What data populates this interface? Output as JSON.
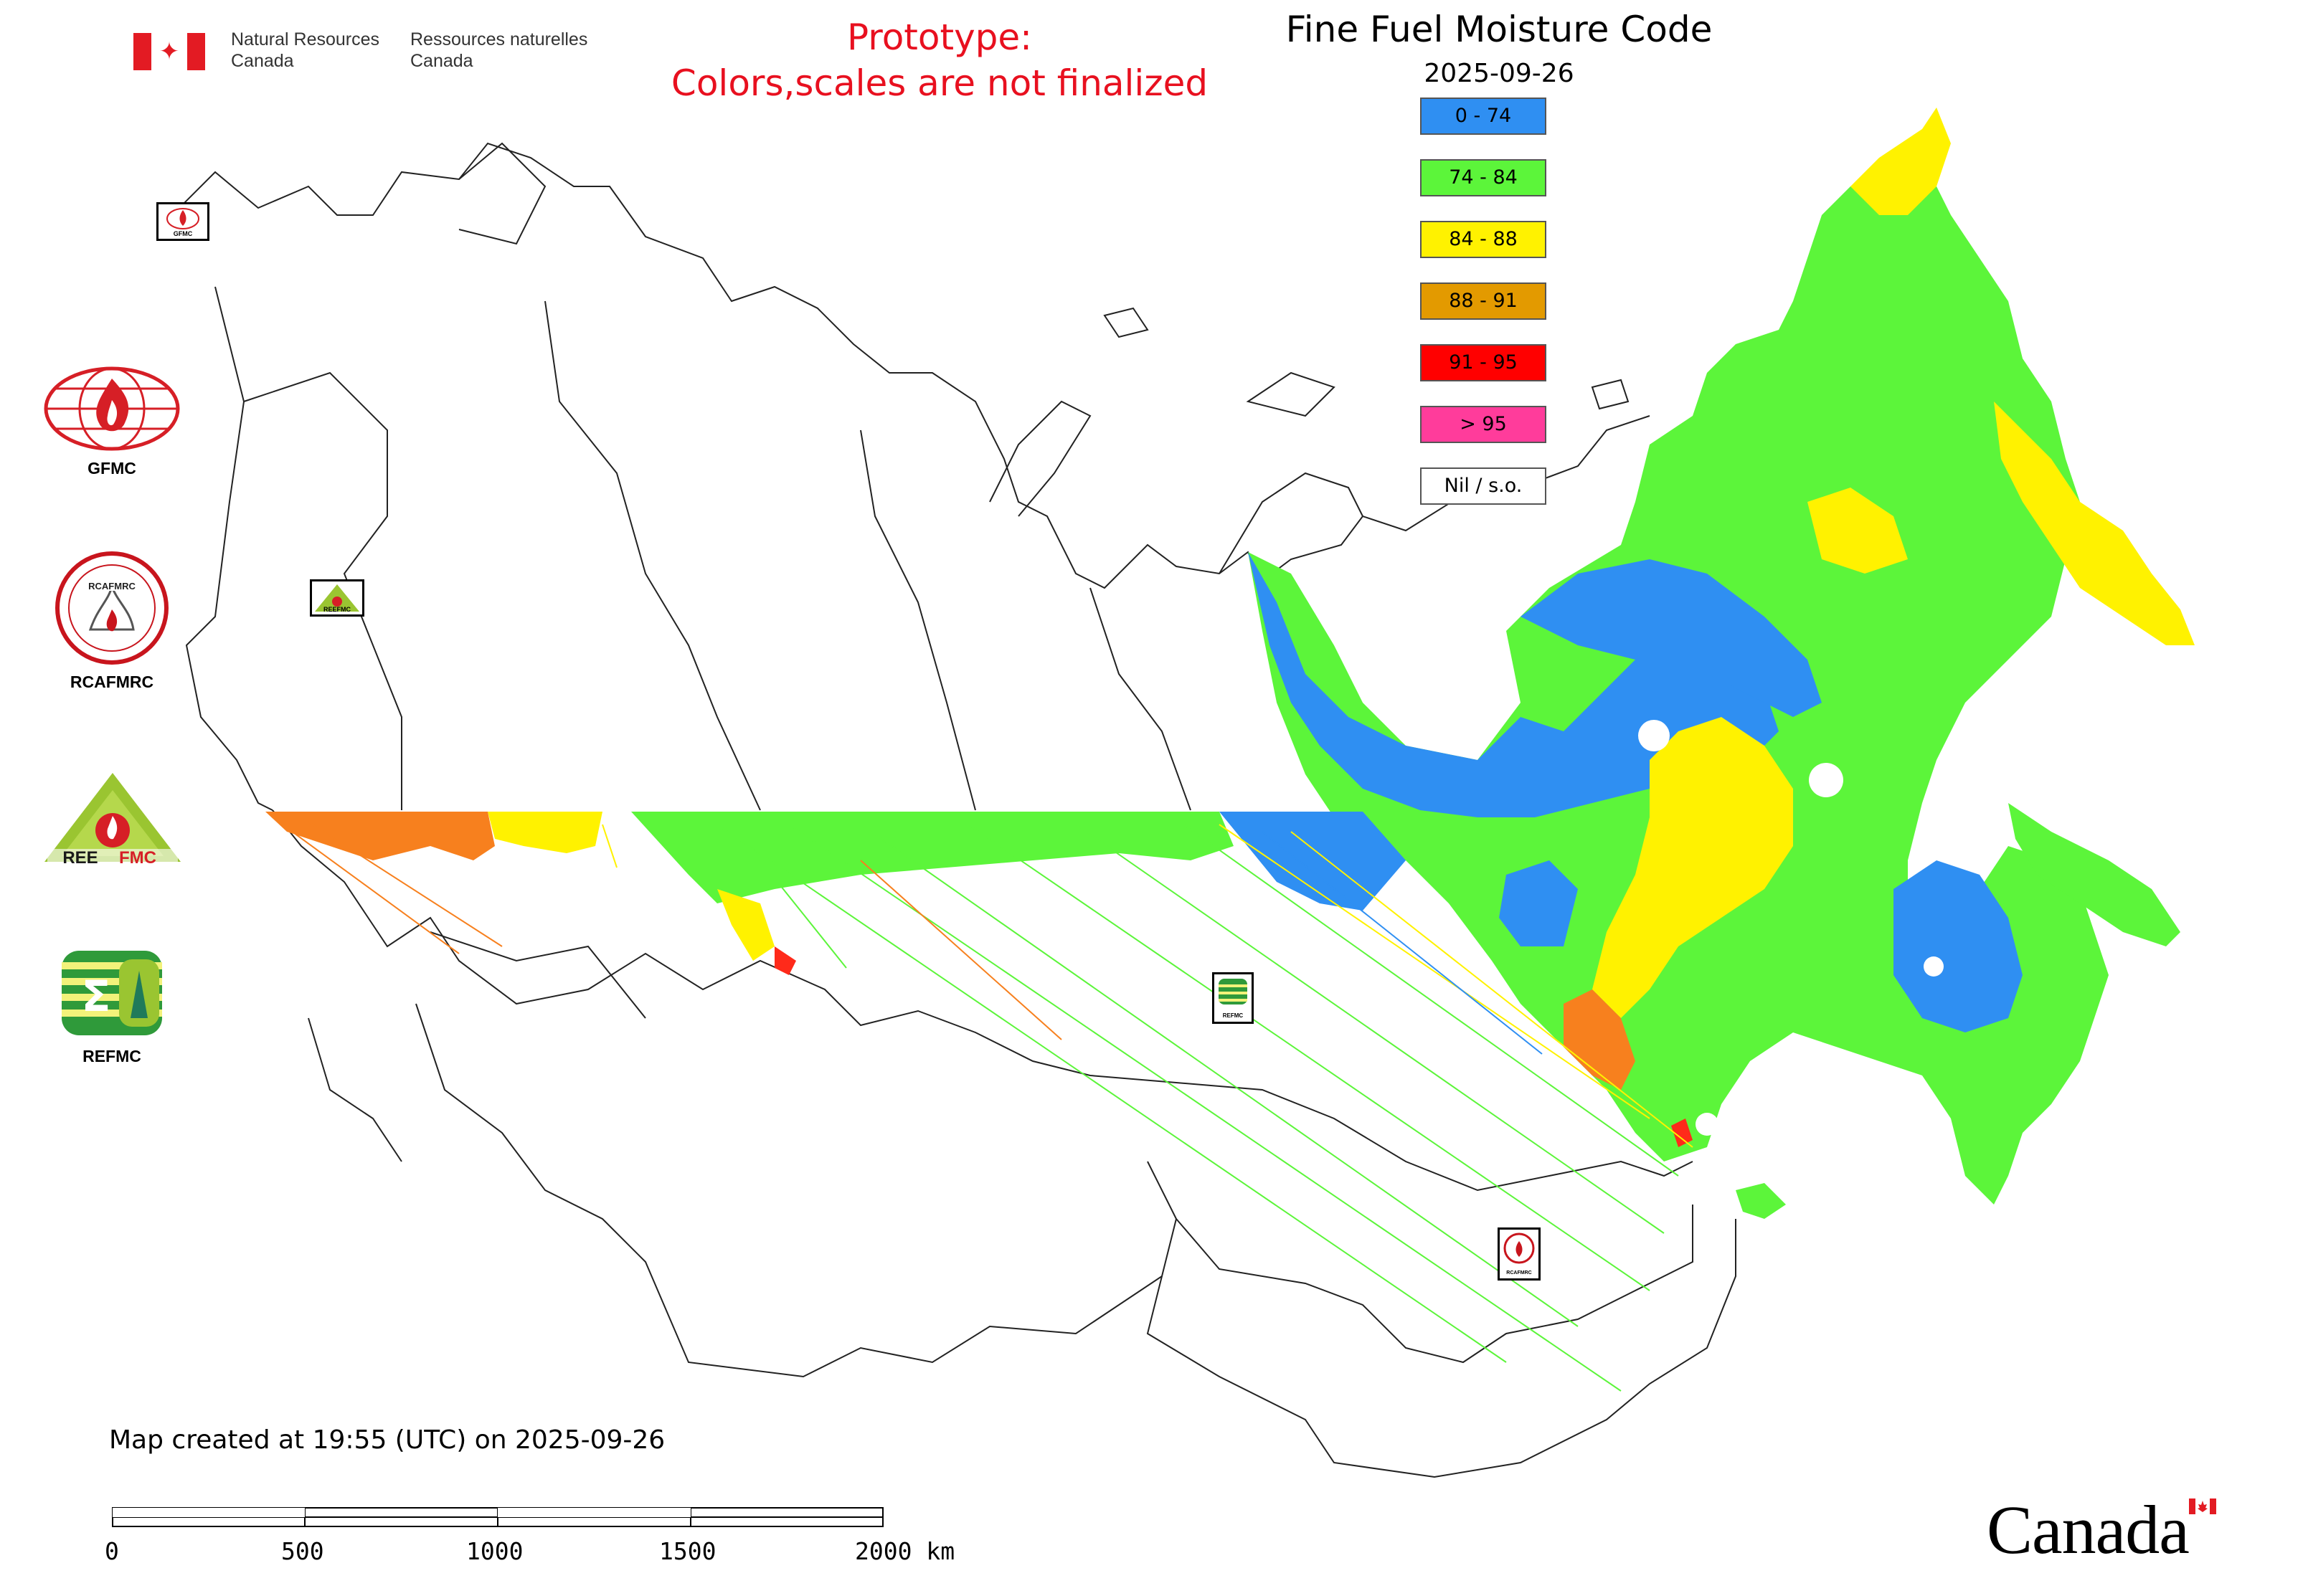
{
  "header": {
    "dept_en": [
      "Natural Resources",
      "Canada"
    ],
    "dept_fr": [
      "Ressources naturelles",
      "Canada"
    ],
    "prototype_line1": "Prototype:",
    "prototype_line2": "Colors,scales are not finalized",
    "title": "Fine Fuel Moisture Code",
    "date": "2025-09-26"
  },
  "legend": {
    "items": [
      {
        "label": "0 - 74",
        "color": "#2f8ff2"
      },
      {
        "label": "74 - 84",
        "color": "#5cf53a"
      },
      {
        "label": "84 - 88",
        "color": "#fff200"
      },
      {
        "label": "88 - 91",
        "color": "#e39a00"
      },
      {
        "label": "91 - 95",
        "color": "#ff0000"
      },
      {
        "label": "> 95",
        "color": "#ff3c9b"
      },
      {
        "label": "Nil / s.o.",
        "color": "#ffffff"
      }
    ]
  },
  "logos": [
    {
      "label": "GFMC",
      "icon": "gfmc-globe-fire-logo"
    },
    {
      "label": "RCAFMRC",
      "icon": "rcafmrc-round-seal-logo"
    },
    {
      "label": "REEFMC",
      "icon": "reefmc-triangle-fire-logo"
    },
    {
      "label": "REFMC",
      "icon": "refmc-green-stripes-logo"
    }
  ],
  "map_markers": [
    {
      "icon": "gfmc-small-marker",
      "label": "GFMC"
    },
    {
      "icon": "reefmc-small-marker",
      "label": "REEFMC"
    },
    {
      "icon": "refmc-small-marker",
      "label": "REFMC"
    },
    {
      "icon": "rcafmrc-small-marker",
      "label": "RCAFMRC"
    }
  ],
  "footer": {
    "created": "Map created at 19:55 (UTC) on 2025-09-26",
    "scale": {
      "ticks": [
        "0",
        "500",
        "1000",
        "1500",
        "2000 km"
      ]
    },
    "wordmark": "Canada"
  }
}
